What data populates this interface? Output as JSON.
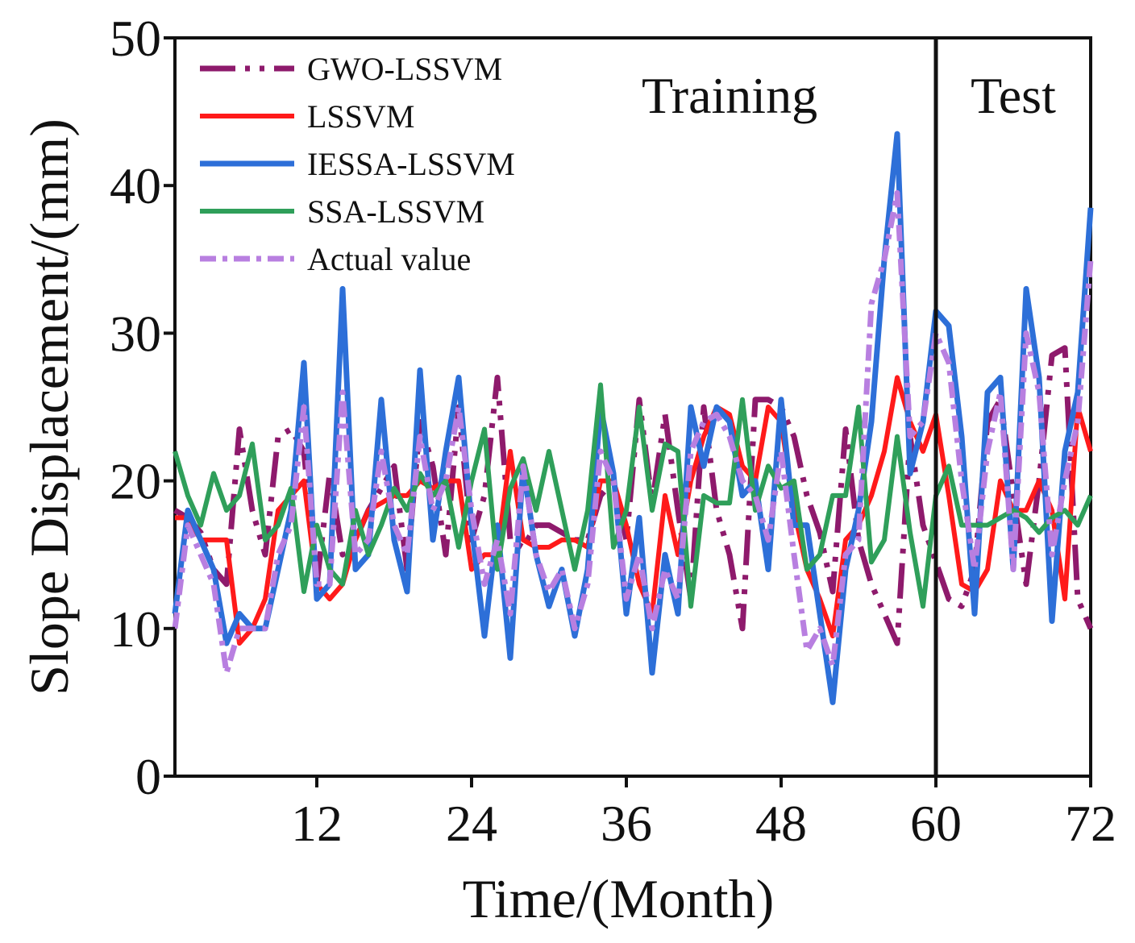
{
  "chart_data": {
    "type": "line",
    "xlabel": "Time/(Month)",
    "ylabel": "Slope Displacement/(mm)",
    "xlim": [
      1,
      72
    ],
    "ylim": [
      0,
      50
    ],
    "xticks": [
      12,
      24,
      36,
      48,
      60,
      72
    ],
    "yticks": [
      0,
      10,
      20,
      30,
      40,
      50
    ],
    "grid": false,
    "legend_position": "top-left",
    "divider_x": 60,
    "regions": [
      {
        "label": "Training",
        "x_center": 44
      },
      {
        "label": "Test",
        "x_center": 66
      }
    ],
    "x": [
      1,
      2,
      3,
      4,
      5,
      6,
      7,
      8,
      9,
      10,
      11,
      12,
      13,
      14,
      15,
      16,
      17,
      18,
      19,
      20,
      21,
      22,
      23,
      24,
      25,
      26,
      27,
      28,
      29,
      30,
      31,
      32,
      33,
      34,
      35,
      36,
      37,
      38,
      39,
      40,
      41,
      42,
      43,
      44,
      45,
      46,
      47,
      48,
      49,
      50,
      51,
      52,
      53,
      54,
      55,
      56,
      57,
      58,
      59,
      60,
      61,
      62,
      63,
      64,
      65,
      66,
      67,
      68,
      69,
      70,
      71,
      72
    ],
    "series": [
      {
        "name": "GWO-LSSVM",
        "color": "#8e1a6c",
        "dash": "44 12 6 12 6 12",
        "width": 7,
        "values": [
          18,
          17.5,
          16.5,
          14,
          13,
          23.5,
          18,
          15,
          23,
          23.5,
          22,
          13,
          20.5,
          15,
          16,
          18,
          19.5,
          21,
          14,
          24,
          21,
          15,
          25,
          16,
          19,
          27,
          16,
          15.5,
          17,
          17,
          16.5,
          16,
          16,
          19,
          20,
          16,
          25.5,
          18.5,
          24.5,
          18,
          12,
          25,
          18,
          15,
          10,
          25.5,
          25.5,
          25,
          23,
          19,
          16.5,
          12.5,
          23.5,
          16,
          13,
          11,
          9,
          23,
          17,
          14.5,
          12,
          11.5,
          14,
          24,
          25.5,
          19,
          13,
          20,
          28.5,
          29,
          12,
          10
        ]
      },
      {
        "name": "LSSVM",
        "color": "#ff1a1a",
        "dash": "",
        "width": 6,
        "values": [
          17.5,
          17.5,
          16,
          16,
          16,
          9,
          10,
          12,
          18,
          19,
          20,
          13,
          12,
          13,
          16,
          18,
          18.5,
          19,
          19,
          20,
          19.5,
          20,
          20,
          14,
          15,
          15,
          22,
          16,
          15.5,
          15.5,
          16,
          16,
          15.5,
          20,
          20,
          17,
          13,
          11,
          19,
          15,
          20,
          23,
          25,
          24.5,
          21,
          20,
          25,
          24,
          18,
          14,
          12,
          9.5,
          16,
          17,
          19,
          22,
          27,
          24,
          22,
          24.5,
          19,
          13,
          12.5,
          14,
          20,
          18,
          18,
          20,
          18,
          12,
          25,
          22
        ]
      },
      {
        "name": "IESSA-LSSVM",
        "color": "#2d6fd8",
        "dash": "",
        "width": 7,
        "values": [
          11,
          18,
          16,
          14,
          9,
          11,
          10,
          10,
          14,
          18,
          28,
          12,
          13,
          33,
          14,
          15,
          25.5,
          16,
          12.5,
          27.5,
          16,
          22,
          27,
          17,
          9.5,
          17,
          8,
          21,
          15,
          11.5,
          14,
          9.5,
          14,
          25,
          20.5,
          11,
          17.5,
          7,
          15,
          11,
          25,
          21,
          25,
          24,
          19,
          20,
          14,
          25.5,
          17,
          17,
          11,
          5,
          14,
          18,
          24,
          35,
          43.5,
          20.5,
          24,
          31.5,
          30.5,
          23,
          11,
          26,
          27,
          14,
          33,
          27,
          10.5,
          22,
          26,
          38.5
        ]
      },
      {
        "name": "SSA-LSSVM",
        "color": "#2f9f5a",
        "dash": "",
        "width": 6,
        "values": [
          22,
          19,
          17,
          20.5,
          18,
          19,
          22.5,
          16,
          17,
          19.5,
          12.5,
          17,
          14,
          13,
          18,
          15,
          17,
          19.5,
          18,
          20.5,
          19,
          20,
          15.5,
          20,
          23.5,
          14,
          19.5,
          21.5,
          18,
          22,
          18,
          14,
          18,
          26.5,
          15.5,
          18,
          25,
          18,
          22.5,
          22,
          11.5,
          19,
          18.5,
          18.5,
          25.5,
          18,
          21,
          19.5,
          20,
          14,
          15,
          19,
          19,
          25,
          14.5,
          16,
          23,
          16.5,
          11.5,
          19,
          21,
          17,
          17,
          17,
          17.5,
          18,
          17.5,
          16.5,
          17.5,
          18,
          17,
          19
        ]
      },
      {
        "name": "Actual value",
        "color": "#b87fe0",
        "dash": "20 8 6 8",
        "width": 7,
        "values": [
          10,
          17,
          15,
          13,
          7,
          10,
          10,
          10,
          15,
          17,
          25,
          13,
          13,
          26,
          15,
          16,
          22,
          17,
          15,
          23,
          18,
          20,
          25,
          18,
          13,
          16,
          11,
          21,
          15,
          12.5,
          14,
          10,
          13,
          22,
          20,
          12,
          15,
          10,
          14,
          12,
          22,
          24,
          24.5,
          23,
          20,
          19,
          16,
          22,
          15,
          8.5,
          10,
          7.5,
          15,
          16,
          32,
          35,
          39.5,
          23,
          24,
          30,
          28,
          20,
          14,
          22,
          26,
          14,
          30,
          26,
          15,
          20,
          24,
          35
        ]
      }
    ]
  }
}
